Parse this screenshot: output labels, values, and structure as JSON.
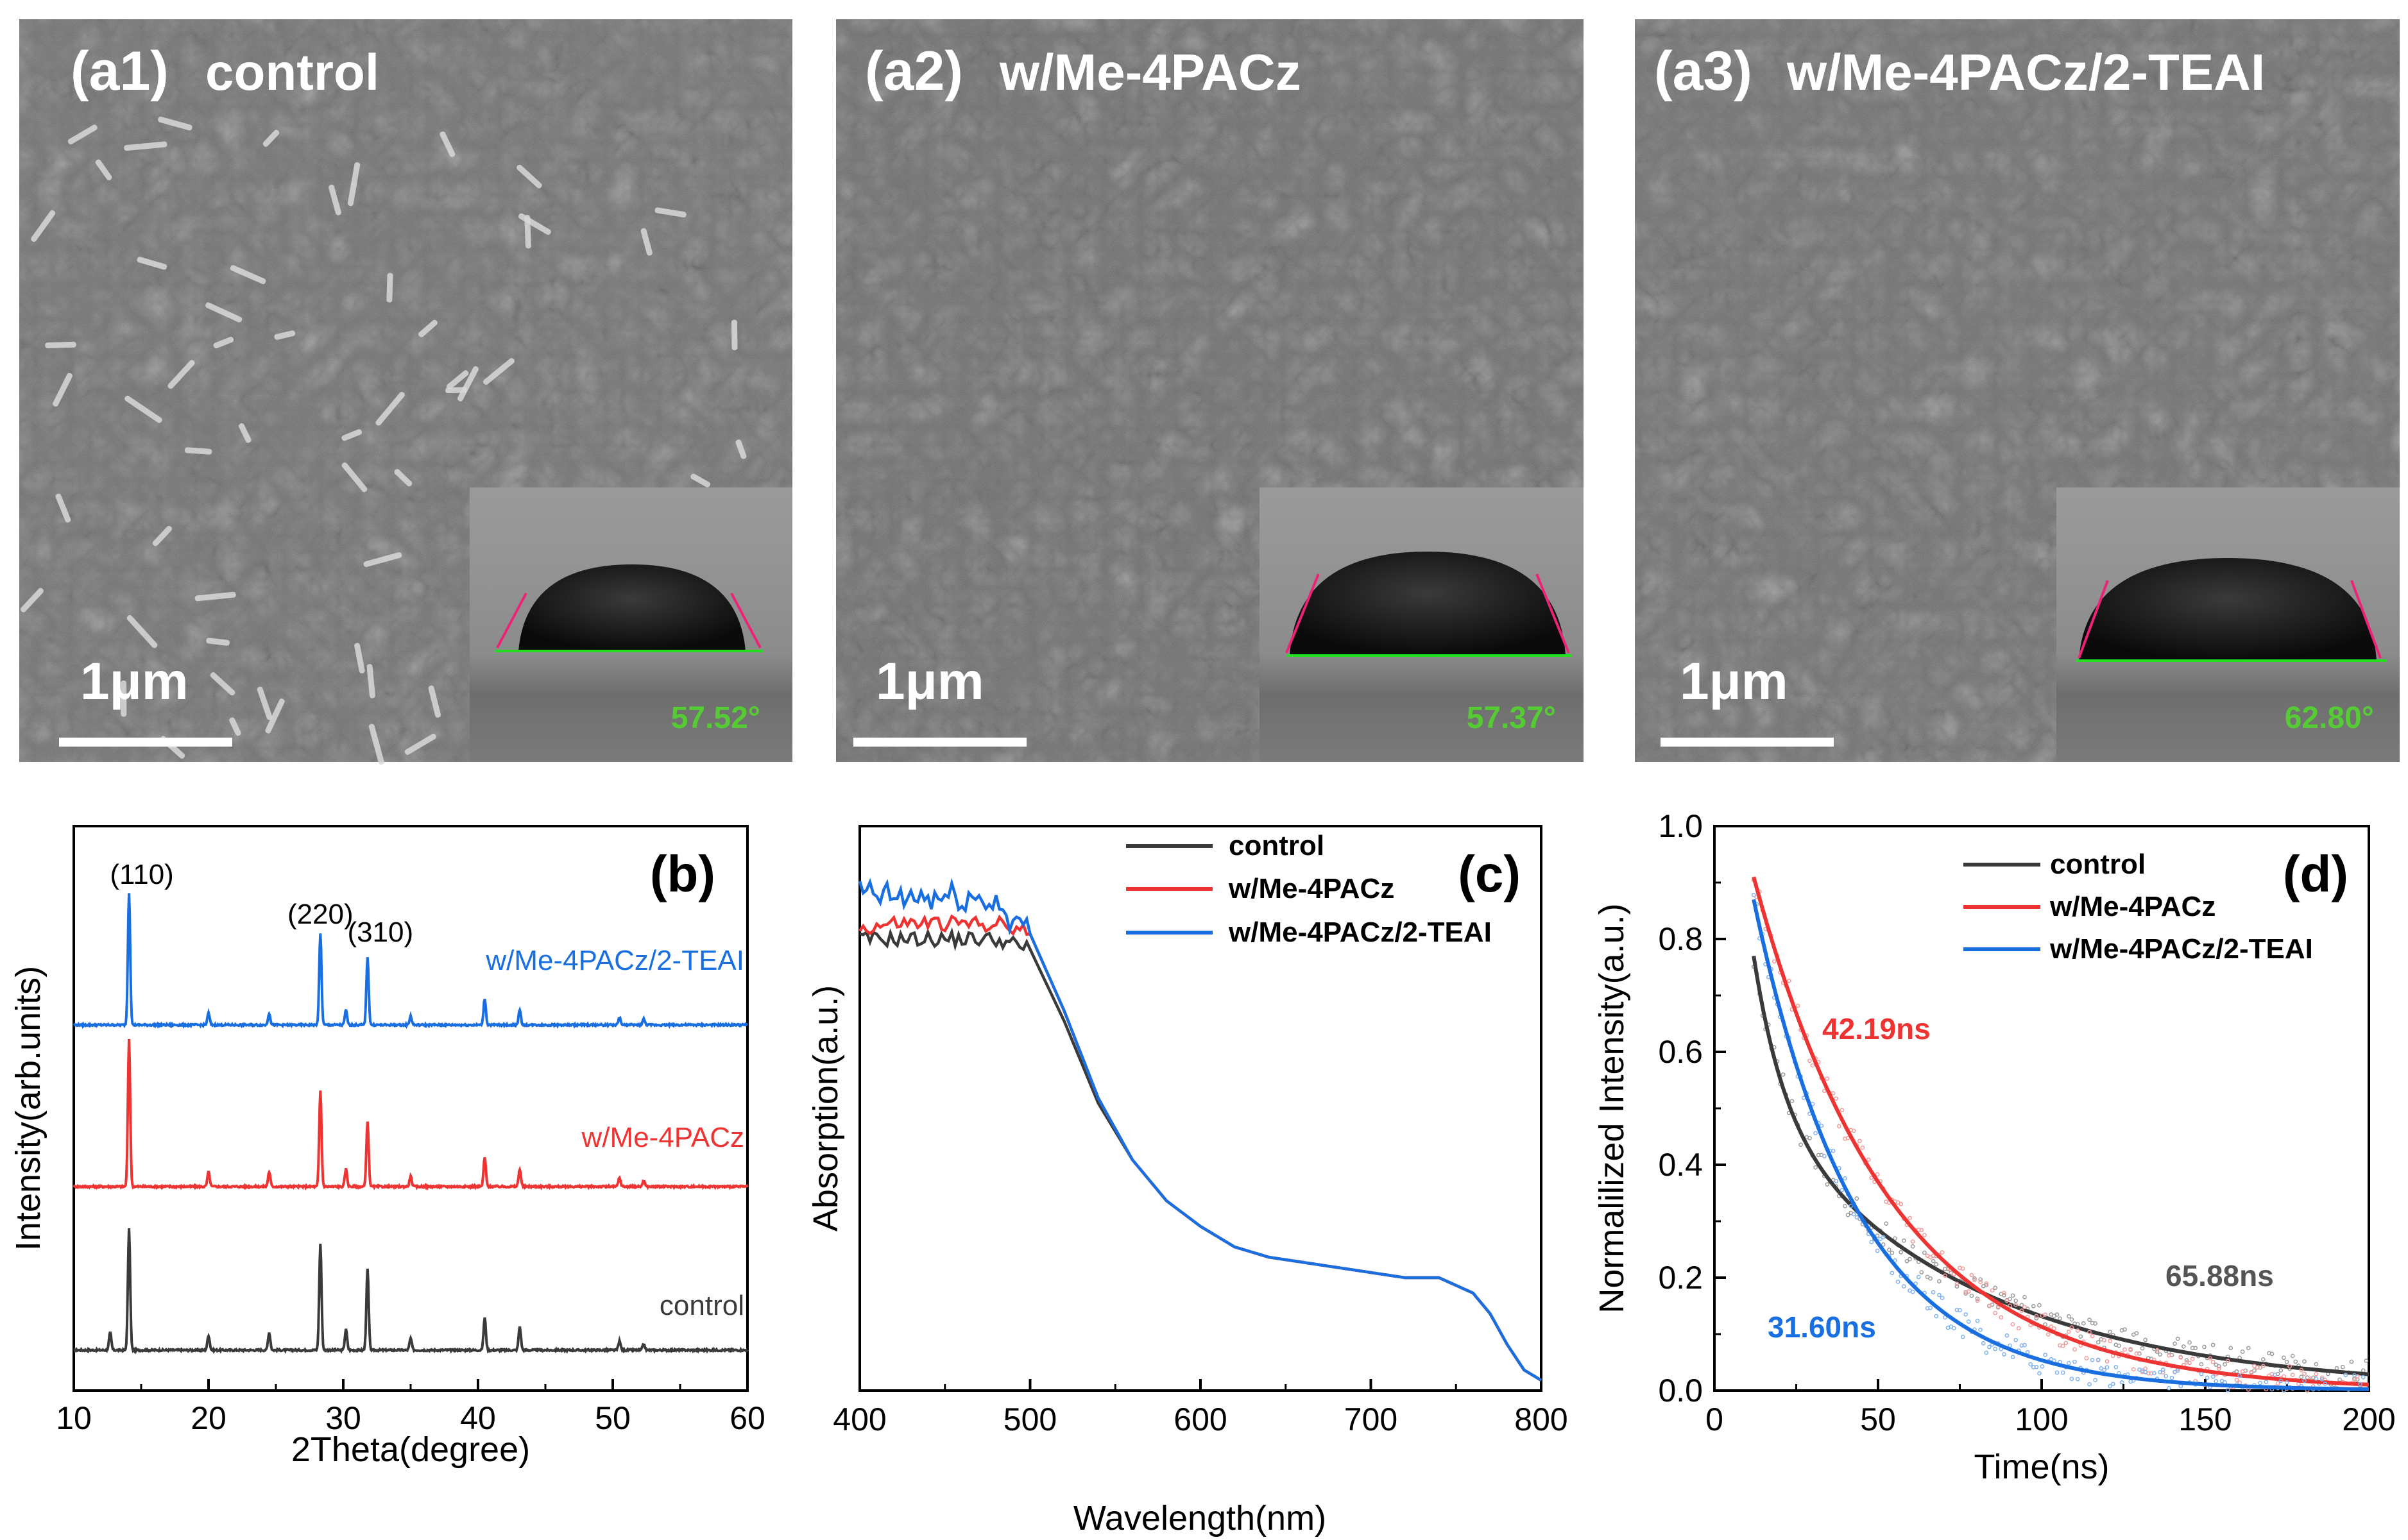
{
  "sem_panels": [
    {
      "label": "(a1)",
      "title": "control",
      "scale_bar": "1μm",
      "contact_angle": "57.52°"
    },
    {
      "label": "(a2)",
      "title": "w/Me-4PACz",
      "scale_bar": "1μm",
      "contact_angle": "57.37°"
    },
    {
      "label": "(a3)",
      "title": "w/Me-4PACz/2-TEAI",
      "scale_bar": "1μm",
      "contact_angle": "62.80°"
    }
  ],
  "colors": {
    "control": "#3a3a3a",
    "me4pacz": "#ee3333",
    "teai": "#1a6fe0",
    "angle_text": "#55cc33",
    "baseline": "#22dd22",
    "tangent": "#ee2277",
    "sem_bg": "#6b6b6b",
    "grain_light": "#8a8a8a",
    "grain_dark": "#555555"
  },
  "chart_data": [
    {
      "panel": "(b)",
      "type": "line",
      "xlabel": "2Theta(degree)",
      "ylabel": "Intensity(arb.units)",
      "xlim": [
        10,
        60
      ],
      "xticks": [
        "10",
        "20",
        "30",
        "40",
        "50",
        "60"
      ],
      "peak_labels": [
        "(110)",
        "(220)",
        "(310)"
      ],
      "peak_label_positions": [
        14.1,
        28.3,
        31.8
      ],
      "series": [
        {
          "name": "control",
          "offset": 0.0,
          "peaks": [
            [
              12.7,
              0.12
            ],
            [
              14.1,
              0.82
            ],
            [
              20.0,
              0.1
            ],
            [
              24.5,
              0.12
            ],
            [
              28.3,
              0.72
            ],
            [
              30.2,
              0.14
            ],
            [
              31.8,
              0.55
            ],
            [
              35.0,
              0.08
            ],
            [
              40.5,
              0.22
            ],
            [
              43.1,
              0.16
            ],
            [
              50.5,
              0.06
            ],
            [
              52.3,
              0.04
            ]
          ]
        },
        {
          "name": "w/Me-4PACz",
          "offset": 1.05,
          "peaks": [
            [
              14.1,
              1.0
            ],
            [
              20.0,
              0.1
            ],
            [
              24.5,
              0.1
            ],
            [
              28.3,
              0.65
            ],
            [
              30.2,
              0.12
            ],
            [
              31.8,
              0.44
            ],
            [
              35.0,
              0.07
            ],
            [
              40.5,
              0.2
            ],
            [
              43.1,
              0.12
            ],
            [
              50.5,
              0.06
            ],
            [
              52.3,
              0.04
            ]
          ]
        },
        {
          "name": "w/Me-4PACz/2-TEAI",
          "offset": 2.1,
          "peaks": [
            [
              14.1,
              0.9
            ],
            [
              20.0,
              0.08
            ],
            [
              24.5,
              0.08
            ],
            [
              28.3,
              0.62
            ],
            [
              30.2,
              0.1
            ],
            [
              31.8,
              0.46
            ],
            [
              35.0,
              0.06
            ],
            [
              40.5,
              0.18
            ],
            [
              43.1,
              0.1
            ],
            [
              50.5,
              0.05
            ],
            [
              52.3,
              0.04
            ]
          ]
        }
      ]
    },
    {
      "panel": "(c)",
      "type": "line",
      "xlabel": "Wavelength(nm)",
      "ylabel": "Absorption(a.u.)",
      "xlim": [
        400,
        800
      ],
      "ylim": [
        0,
        1.1
      ],
      "xticks": [
        "400",
        "500",
        "600",
        "700",
        "800"
      ],
      "x": [
        400,
        420,
        440,
        460,
        480,
        500,
        520,
        540,
        560,
        580,
        600,
        620,
        640,
        660,
        680,
        700,
        720,
        740,
        760,
        770,
        780,
        790,
        800
      ],
      "series": [
        {
          "name": "control",
          "values": [
            0.88,
            0.88,
            0.88,
            0.88,
            0.88,
            0.86,
            0.72,
            0.56,
            0.45,
            0.37,
            0.32,
            0.28,
            0.26,
            0.25,
            0.24,
            0.23,
            0.22,
            0.22,
            0.19,
            0.15,
            0.09,
            0.04,
            0.02
          ]
        },
        {
          "name": "w/Me-4PACz",
          "values": [
            0.9,
            0.91,
            0.91,
            0.91,
            0.91,
            0.89,
            0.74,
            0.57,
            0.45,
            0.37,
            0.32,
            0.28,
            0.26,
            0.25,
            0.24,
            0.23,
            0.22,
            0.22,
            0.19,
            0.15,
            0.09,
            0.04,
            0.02
          ]
        },
        {
          "name": "w/Me-4PACz/2-TEAI",
          "values": [
            0.97,
            0.96,
            0.96,
            0.96,
            0.95,
            0.89,
            0.74,
            0.57,
            0.45,
            0.37,
            0.32,
            0.28,
            0.26,
            0.25,
            0.24,
            0.23,
            0.22,
            0.22,
            0.19,
            0.15,
            0.09,
            0.04,
            0.02
          ]
        }
      ]
    },
    {
      "panel": "(d)",
      "type": "scatter",
      "xlabel": "Time(ns)",
      "ylabel": "Normalilized Intensity(a.u.)",
      "xlim": [
        0,
        200
      ],
      "ylim": [
        0.0,
        1.0
      ],
      "xticks": [
        "0",
        "50",
        "100",
        "150",
        "200"
      ],
      "yticks": [
        "0.0",
        "0.2",
        "0.4",
        "0.6",
        "0.8",
        "1.0"
      ],
      "series": [
        {
          "name": "control",
          "t0": 12,
          "amplitude": 0.77,
          "lifetime_ns": 65.88,
          "lifetime_label": "65.88ns"
        },
        {
          "name": "w/Me-4PACz",
          "t0": 12,
          "amplitude": 0.91,
          "lifetime_ns": 42.19,
          "lifetime_label": "42.19ns"
        },
        {
          "name": "w/Me-4PACz/2-TEAI",
          "t0": 12,
          "amplitude": 0.87,
          "lifetime_ns": 31.6,
          "lifetime_label": "31.60ns"
        }
      ]
    }
  ]
}
